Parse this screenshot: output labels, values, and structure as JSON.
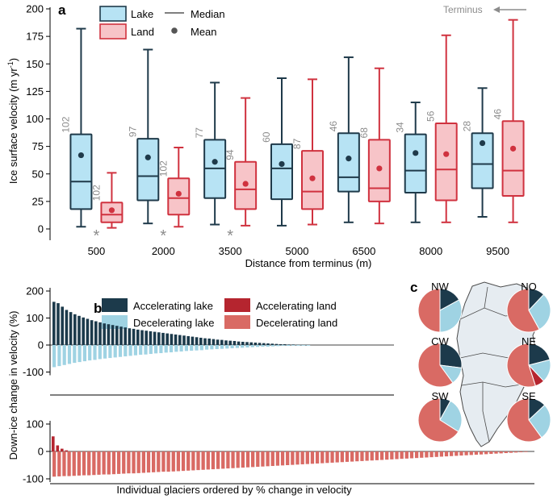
{
  "colors": {
    "lake_fill": "#b7e3f4",
    "lake_edge": "#1f3a4a",
    "land_fill": "#f7c4c8",
    "land_edge": "#d0323f",
    "accel_lake": "#1c3a4b",
    "decel_lake": "#9fd3e3",
    "accel_land": "#b5252f",
    "decel_land": "#d96a64",
    "map_fill": "#e6ecf1",
    "gray_text": "#8c8c8c"
  },
  "panel_a": {
    "label": "a",
    "terminus_label": "Terminus",
    "legend": {
      "lake": "Lake",
      "land": "Land",
      "median": "Median",
      "mean": "Mean"
    },
    "chart_data": {
      "type": "box",
      "title": "",
      "ylabel": "Ice surface velocity (m yr⁻¹)",
      "xlabel": "Distance from terminus (m)",
      "ylim": [
        0,
        200
      ],
      "yticks": [
        "0",
        "25",
        "50",
        "75",
        "100",
        "125",
        "150",
        "175",
        "200"
      ],
      "categories": [
        "500",
        "2000",
        "3500",
        "5000",
        "6500",
        "8000",
        "9500"
      ],
      "series": [
        {
          "name": "Lake",
          "boxes": [
            {
              "min": 2,
              "q1": 18,
              "median": 43,
              "q3": 86,
              "max": 182,
              "mean": 67,
              "n": "102"
            },
            {
              "min": 5,
              "q1": 26,
              "median": 48,
              "q3": 82,
              "max": 163,
              "mean": 65,
              "n": "97"
            },
            {
              "min": 4,
              "q1": 28,
              "median": 55,
              "q3": 81,
              "max": 133,
              "mean": 61,
              "n": "77"
            },
            {
              "min": 3,
              "q1": 27,
              "median": 55,
              "q3": 77,
              "max": 137,
              "mean": 59,
              "n": "60"
            },
            {
              "min": 6,
              "q1": 34,
              "median": 47,
              "q3": 87,
              "max": 156,
              "mean": 64,
              "n": "46"
            },
            {
              "min": 6,
              "q1": 33,
              "median": 53,
              "q3": 86,
              "max": 115,
              "mean": 69,
              "n": "34"
            },
            {
              "min": 11,
              "q1": 37,
              "median": 59,
              "q3": 87,
              "max": 128,
              "mean": 78,
              "n": "28"
            }
          ]
        },
        {
          "name": "Land",
          "boxes": [
            {
              "min": 1,
              "q1": 6,
              "median": 13,
              "q3": 24,
              "max": 51,
              "mean": 17,
              "n": "102"
            },
            {
              "min": 2,
              "q1": 13,
              "median": 28,
              "q3": 46,
              "max": 74,
              "mean": 32,
              "n": "102"
            },
            {
              "min": 3,
              "q1": 18,
              "median": 36,
              "q3": 61,
              "max": 119,
              "mean": 41,
              "n": "94"
            },
            {
              "min": 4,
              "q1": 18,
              "median": 34,
              "q3": 71,
              "max": 136,
              "mean": 46,
              "n": "87"
            },
            {
              "min": 5,
              "q1": 25,
              "median": 37,
              "q3": 81,
              "max": 146,
              "mean": 55,
              "n": "68"
            },
            {
              "min": 6,
              "q1": 26,
              "median": 54,
              "q3": 96,
              "max": 176,
              "mean": 68,
              "n": "56"
            },
            {
              "min": 6,
              "q1": 30,
              "median": 53,
              "q3": 98,
              "max": 190,
              "mean": 73,
              "n": "46"
            }
          ]
        }
      ],
      "significance": [
        "*",
        "*",
        "*"
      ]
    }
  },
  "panel_b": {
    "label": "b",
    "legend": {
      "accel_lake": "Accelerating lake",
      "accel_land": "Accelerating land",
      "decel_lake": "Decelerating lake",
      "decel_land": "Decelerating land"
    },
    "chart_data": {
      "type": "bar",
      "ylabel": "Down-ice change in velocity (%)",
      "xlabel": "Individual glaciers ordered by % change in velocity",
      "yticks_top": [
        "-100",
        "0",
        "100",
        "200"
      ],
      "yticks_bottom": [
        "-100",
        "0",
        "100"
      ],
      "ylim": [
        -100,
        200
      ],
      "lake_accelerating": [
        160,
        155,
        142,
        130,
        122,
        114,
        108,
        102,
        97,
        92,
        88,
        84,
        80,
        77,
        74,
        71,
        68,
        65,
        62,
        60,
        57,
        55,
        53,
        51,
        49,
        47,
        45,
        43,
        41,
        39,
        37,
        35,
        33,
        31,
        29,
        27,
        25,
        24,
        22,
        20,
        19,
        17,
        16,
        15,
        13,
        12,
        11,
        10,
        9,
        8,
        7,
        6,
        5,
        4,
        3,
        3,
        2,
        2,
        1,
        1,
        1
      ],
      "lake_decelerating": [
        -82,
        -78,
        -74,
        -70,
        -66,
        -63,
        -60,
        -57,
        -55,
        -52,
        -50,
        -48,
        -46,
        -44,
        -42,
        -40,
        -38,
        -36,
        -35,
        -33,
        -31,
        -30,
        -28,
        -27,
        -25,
        -24,
        -22,
        -21,
        -20,
        -19,
        -17,
        -16,
        -15,
        -14,
        -13,
        -12,
        -11,
        -10,
        -9,
        -8,
        -7,
        -6,
        -6,
        -5,
        -4,
        -3,
        -3,
        -2,
        -2,
        -1,
        -1
      ],
      "land_accelerating": [
        55,
        22,
        10,
        4
      ],
      "land_decelerating": [
        -92,
        -91,
        -90,
        -90,
        -89,
        -88,
        -87,
        -87,
        -86,
        -85,
        -84,
        -84,
        -83,
        -82,
        -81,
        -80,
        -80,
        -79,
        -78,
        -77,
        -76,
        -75,
        -74,
        -74,
        -73,
        -72,
        -71,
        -70,
        -69,
        -68,
        -67,
        -66,
        -65,
        -64,
        -63,
        -62,
        -61,
        -60,
        -59,
        -58,
        -57,
        -56,
        -55,
        -54,
        -53,
        -52,
        -51,
        -50,
        -49,
        -48,
        -47,
        -46,
        -45,
        -44,
        -43,
        -42,
        -41,
        -40,
        -39,
        -38,
        -37,
        -36,
        -35,
        -34,
        -33,
        -32,
        -31,
        -30,
        -29,
        -28,
        -27,
        -26,
        -25,
        -24,
        -23,
        -22,
        -21,
        -20,
        -19,
        -18,
        -17,
        -16,
        -15,
        -14,
        -13,
        -12,
        -11,
        -10,
        -9,
        -8,
        -7,
        -6,
        -5,
        -4,
        -3,
        -2
      ]
    }
  },
  "panel_c": {
    "label": "c",
    "chart_data": {
      "type": "pie",
      "categories": [
        "Accelerating lake",
        "Decelerating lake",
        "Accelerating land",
        "Decelerating land"
      ],
      "regions": [
        {
          "name": "NW",
          "values": [
            17,
            33,
            0,
            50
          ]
        },
        {
          "name": "NO",
          "values": [
            12,
            30,
            0,
            58
          ]
        },
        {
          "name": "CW",
          "values": [
            27,
            13,
            0,
            60
          ]
        },
        {
          "name": "NE",
          "values": [
            21,
            17,
            7,
            55
          ]
        },
        {
          "name": "SW",
          "values": [
            8,
            26,
            0,
            66
          ]
        },
        {
          "name": "SE",
          "values": [
            13,
            27,
            0,
            60
          ]
        }
      ]
    }
  }
}
